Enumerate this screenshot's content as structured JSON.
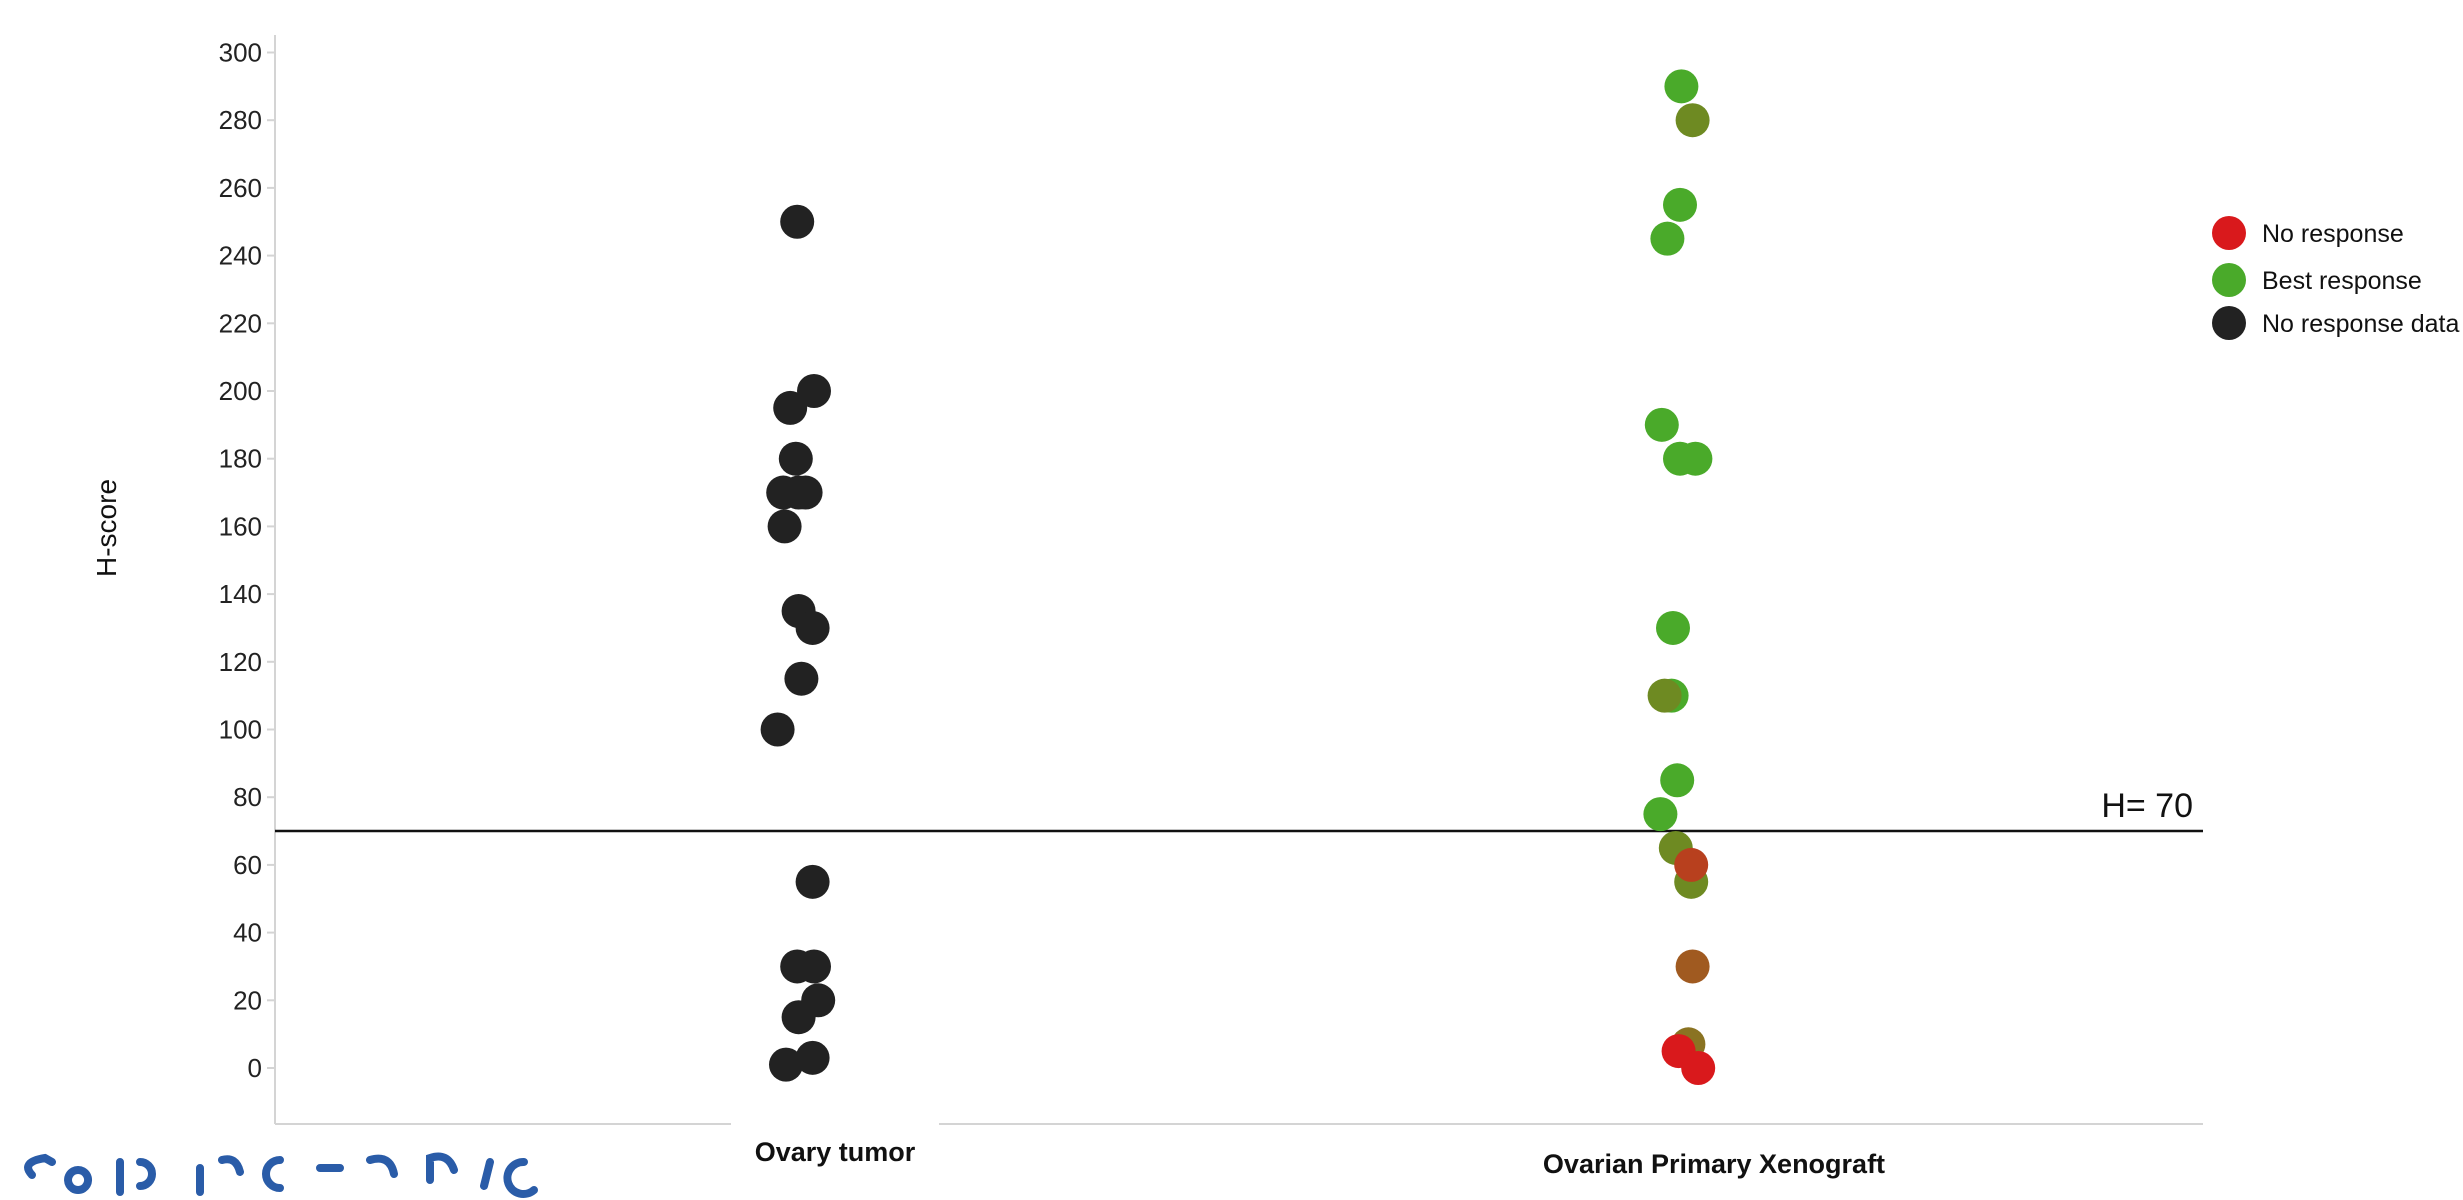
{
  "chart_data": {
    "type": "scatter",
    "ylabel": "H-score",
    "xlabel": "",
    "ylim": [
      -16,
      306
    ],
    "yticks": [
      0,
      20,
      40,
      60,
      80,
      100,
      120,
      140,
      160,
      180,
      200,
      220,
      240,
      260,
      280,
      300
    ],
    "categories": [
      "Ovary tumor",
      "Ovarian Primary Xenograft"
    ],
    "grid": false,
    "legend_position": "right",
    "reference_line": {
      "y": 70,
      "label": "H= 70"
    },
    "legend": [
      {
        "name": "No response",
        "color": "#d9191c"
      },
      {
        "name": "Best response",
        "color": "#4aaa2a"
      },
      {
        "name": "No response data",
        "color": "#222222"
      }
    ],
    "series": [
      {
        "category": "Ovary tumor",
        "group": "No response data",
        "color": "#222222",
        "points": [
          {
            "jitter": -0.2,
            "y": 250
          },
          {
            "jitter": 1.0,
            "y": 200
          },
          {
            "jitter": -0.7,
            "y": 195
          },
          {
            "jitter": -0.3,
            "y": 180
          },
          {
            "jitter": -1.2,
            "y": 170
          },
          {
            "jitter": -0.1,
            "y": 170
          },
          {
            "jitter": 0.4,
            "y": 170
          },
          {
            "jitter": -1.1,
            "y": 160
          },
          {
            "jitter": -0.1,
            "y": 135
          },
          {
            "jitter": 0.9,
            "y": 130
          },
          {
            "jitter": 0.1,
            "y": 115
          },
          {
            "jitter": -1.6,
            "y": 100
          },
          {
            "jitter": 0.9,
            "y": 55
          },
          {
            "jitter": -0.2,
            "y": 30
          },
          {
            "jitter": 1.0,
            "y": 30
          },
          {
            "jitter": 1.3,
            "y": 20
          },
          {
            "jitter": -0.1,
            "y": 15
          },
          {
            "jitter": -1.0,
            "y": 1
          },
          {
            "jitter": 0.9,
            "y": 3
          }
        ]
      },
      {
        "category": "Ovarian Primary Xenograft",
        "group": "Best response",
        "color": "#4aaa2a",
        "points": [
          {
            "jitter": 0.1,
            "y": 290
          },
          {
            "jitter": 0.9,
            "y": 280,
            "color": "#6e8a22"
          },
          {
            "jitter": 0.0,
            "y": 255
          },
          {
            "jitter": -0.9,
            "y": 245
          },
          {
            "jitter": -1.3,
            "y": 190
          },
          {
            "jitter": 0.0,
            "y": 180
          },
          {
            "jitter": 1.1,
            "y": 180
          },
          {
            "jitter": -0.5,
            "y": 130
          },
          {
            "jitter": -0.6,
            "y": 110
          },
          {
            "jitter": -1.1,
            "y": 110,
            "color": "#6e8a22"
          },
          {
            "jitter": -0.2,
            "y": 85
          },
          {
            "jitter": -1.4,
            "y": 75
          },
          {
            "jitter": -0.3,
            "y": 65,
            "color": "#6e8a22"
          },
          {
            "jitter": 0.8,
            "y": 55,
            "color": "#6e8a22"
          },
          {
            "jitter": 0.6,
            "y": 7,
            "color": "#8a7322"
          }
        ]
      },
      {
        "category": "Ovarian Primary Xenograft",
        "group": "No response",
        "color": "#d9191c",
        "points": [
          {
            "jitter": 0.8,
            "y": 60,
            "color": "#b8401e"
          },
          {
            "jitter": 0.9,
            "y": 30,
            "color": "#a05a20"
          },
          {
            "jitter": -0.1,
            "y": 5
          },
          {
            "jitter": 1.3,
            "y": 0
          }
        ]
      }
    ]
  }
}
